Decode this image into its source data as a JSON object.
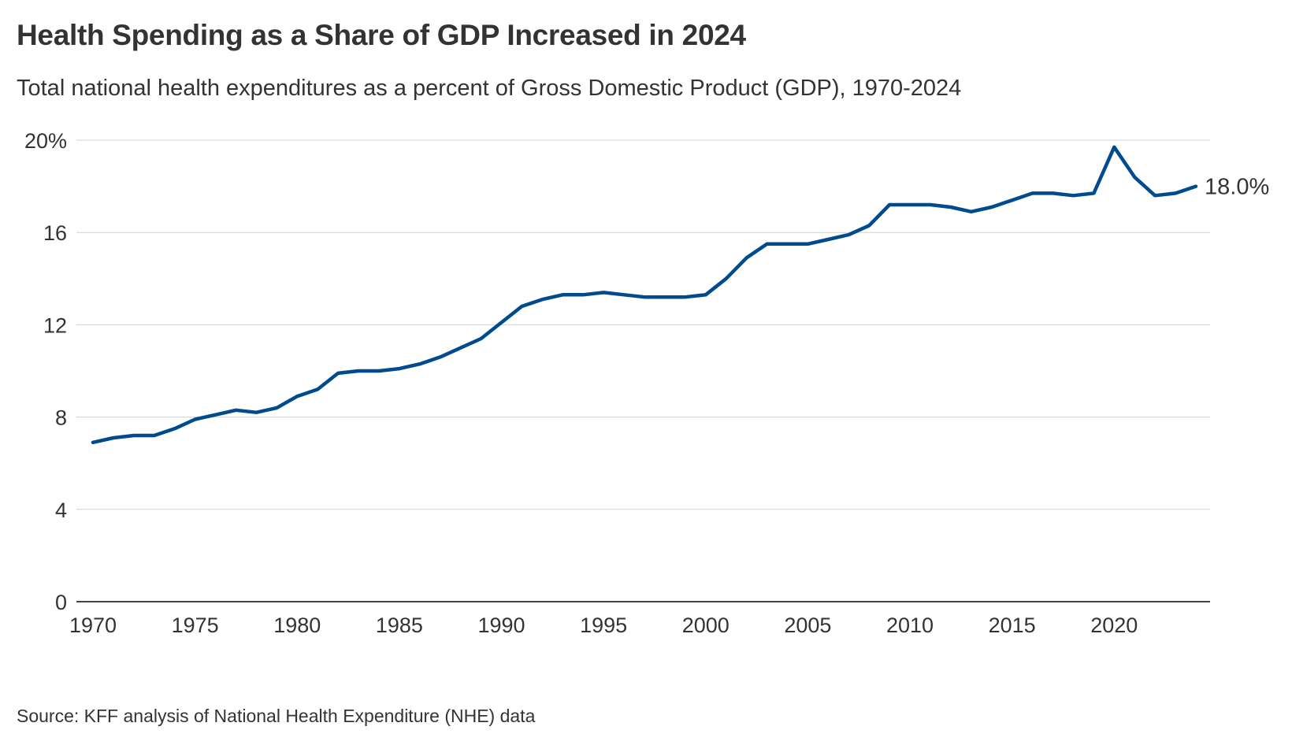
{
  "title": "Health Spending as a Share of GDP Increased in 2024",
  "subtitle": "Total national health expenditures as a percent of Gross Domestic Product (GDP), 1970-2024",
  "source": "Source: KFF analysis of National Health Expenditure (NHE) data",
  "colors": {
    "line": "#004b8d",
    "grid": "#d0d0d0",
    "axis": "#444444",
    "text": "#333333"
  },
  "chart_data": {
    "type": "line",
    "title": "Health Spending as a Share of GDP Increased in 2024",
    "xlabel": "",
    "ylabel": "",
    "xlim": [
      1970,
      2024
    ],
    "ylim": [
      0,
      20
    ],
    "grid": true,
    "legend": "none",
    "x_ticks": [
      "1970",
      "1975",
      "1980",
      "1985",
      "1990",
      "1995",
      "2000",
      "2005",
      "2010",
      "2015",
      "2020"
    ],
    "x_tick_values": [
      1970,
      1975,
      1980,
      1985,
      1990,
      1995,
      2000,
      2005,
      2010,
      2015,
      2020
    ],
    "y_ticks": [
      "0",
      "4",
      "8",
      "12",
      "16",
      "20%"
    ],
    "y_tick_values": [
      0,
      4,
      8,
      12,
      16,
      20
    ],
    "end_label": "18.0%",
    "x": [
      1970,
      1971,
      1972,
      1973,
      1974,
      1975,
      1976,
      1977,
      1978,
      1979,
      1980,
      1981,
      1982,
      1983,
      1984,
      1985,
      1986,
      1987,
      1988,
      1989,
      1990,
      1991,
      1992,
      1993,
      1994,
      1995,
      1996,
      1997,
      1998,
      1999,
      2000,
      2001,
      2002,
      2003,
      2004,
      2005,
      2006,
      2007,
      2008,
      2009,
      2010,
      2011,
      2012,
      2013,
      2014,
      2015,
      2016,
      2017,
      2018,
      2019,
      2020,
      2021,
      2022,
      2023,
      2024
    ],
    "series": [
      {
        "values": [
          6.9,
          7.1,
          7.2,
          7.2,
          7.5,
          7.9,
          8.1,
          8.3,
          8.2,
          8.4,
          8.9,
          9.2,
          9.9,
          10.0,
          10.0,
          10.1,
          10.3,
          10.6,
          11.0,
          11.4,
          12.1,
          12.8,
          13.1,
          13.3,
          13.3,
          13.4,
          13.3,
          13.2,
          13.2,
          13.2,
          13.3,
          14.0,
          14.9,
          15.5,
          15.5,
          15.5,
          15.7,
          15.9,
          16.3,
          17.2,
          17.2,
          17.2,
          17.1,
          16.9,
          17.1,
          17.4,
          17.7,
          17.7,
          17.6,
          17.7,
          19.7,
          18.4,
          17.6,
          17.7,
          18.0
        ]
      }
    ]
  }
}
